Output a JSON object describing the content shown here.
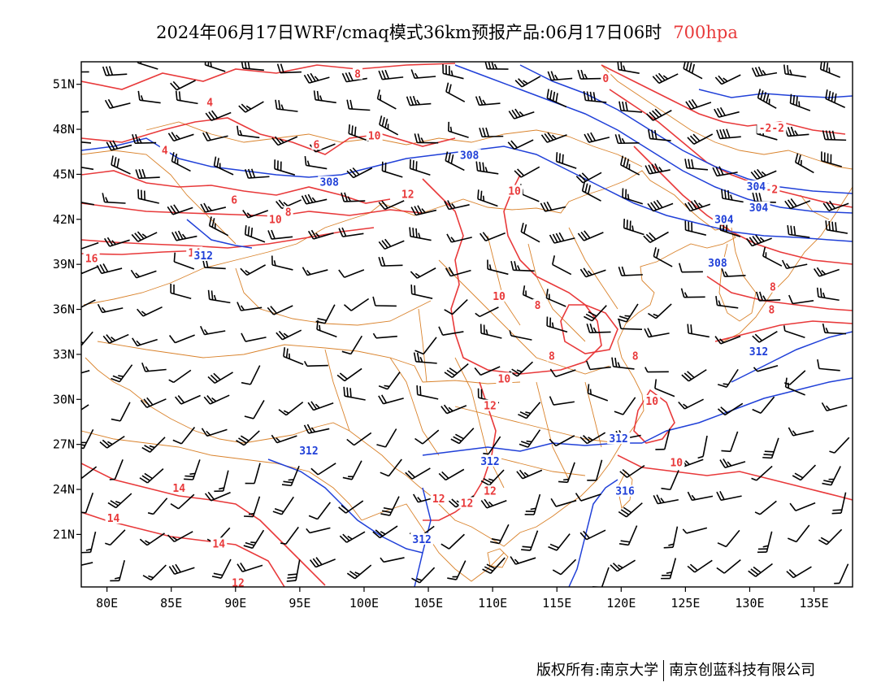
{
  "title": {
    "text": "2024年06月17日WRF/cmaq模式36km预报产品:06月17日06时",
    "level": "700hpa"
  },
  "footer": {
    "left": "版权所有:南京大学",
    "right": "南京创蓝科技有限公司"
  },
  "colors": {
    "temperature": "#e8393a",
    "geopotential": "#2040d8",
    "borders": "#d9822b",
    "wind": "#000000",
    "title_level": "#e8393a"
  },
  "map": {
    "lon_range": [
      78,
      138
    ],
    "lat_range": [
      17.5,
      52.5
    ],
    "lon_ticks": [
      "80E",
      "85E",
      "90E",
      "95E",
      "100E",
      "105E",
      "110E",
      "115E",
      "120E",
      "125E",
      "130E",
      "135E"
    ],
    "lat_ticks": [
      "51N",
      "48N",
      "45N",
      "42N",
      "39N",
      "36N",
      "33N",
      "30N",
      "27N",
      "24N",
      "21N"
    ],
    "temperature_labels": [
      {
        "text": "8",
        "lon": 99.5,
        "lat": 51.6
      },
      {
        "text": "4",
        "lon": 88,
        "lat": 49.7
      },
      {
        "text": "6",
        "lon": 96.3,
        "lat": 46.9
      },
      {
        "text": "4",
        "lon": 84.5,
        "lat": 46.5
      },
      {
        "text": "10",
        "lon": 100.8,
        "lat": 47.5
      },
      {
        "text": "6",
        "lon": 89.9,
        "lat": 43.2
      },
      {
        "text": "8",
        "lon": 94.1,
        "lat": 42.4
      },
      {
        "text": "10",
        "lon": 93.1,
        "lat": 41.9
      },
      {
        "text": "12",
        "lon": 103.4,
        "lat": 43.6
      },
      {
        "text": "10",
        "lon": 111.7,
        "lat": 43.8
      },
      {
        "text": "14",
        "lon": 86.8,
        "lat": 39.7
      },
      {
        "text": "16",
        "lon": 78.8,
        "lat": 39.3
      },
      {
        "text": "10",
        "lon": 110.5,
        "lat": 36.8
      },
      {
        "text": "8",
        "lon": 113.5,
        "lat": 36.2
      },
      {
        "text": "8",
        "lon": 114.6,
        "lat": 32.8
      },
      {
        "text": "8",
        "lon": 121.1,
        "lat": 32.8
      },
      {
        "text": "10",
        "lon": 110.9,
        "lat": 31.3
      },
      {
        "text": "12",
        "lon": 109.8,
        "lat": 29.5
      },
      {
        "text": "10",
        "lon": 122.4,
        "lat": 29.8
      },
      {
        "text": "14",
        "lon": 85.6,
        "lat": 24.0
      },
      {
        "text": "14",
        "lon": 80.5,
        "lat": 22.0
      },
      {
        "text": "14",
        "lon": 88.7,
        "lat": 20.3
      },
      {
        "text": "12",
        "lon": 105.8,
        "lat": 23.3
      },
      {
        "text": "12",
        "lon": 108,
        "lat": 23.0
      },
      {
        "text": "12",
        "lon": 109.8,
        "lat": 23.8
      },
      {
        "text": "10",
        "lon": 124.3,
        "lat": 25.7
      },
      {
        "text": "0",
        "lon": 118.8,
        "lat": 51.3
      },
      {
        "text": "-2-2",
        "lon": 131.7,
        "lat": 48.0
      },
      {
        "text": "-2",
        "lon": 131.7,
        "lat": 43.9
      },
      {
        "text": "8",
        "lon": 131.8,
        "lat": 37.4
      },
      {
        "text": "8",
        "lon": 131.7,
        "lat": 35.9
      },
      {
        "text": "12",
        "lon": 90.2,
        "lat": 17.7
      }
    ],
    "height_labels": [
      {
        "text": "308",
        "lon": 108.2,
        "lat": 46.2
      },
      {
        "text": "308",
        "lon": 97.3,
        "lat": 44.4
      },
      {
        "text": "312",
        "lon": 87.5,
        "lat": 39.5
      },
      {
        "text": "308",
        "lon": 127.5,
        "lat": 39.0
      },
      {
        "text": "304",
        "lon": 128,
        "lat": 41.9
      },
      {
        "text": "304",
        "lon": 130.5,
        "lat": 44.1
      },
      {
        "text": "304",
        "lon": 130.7,
        "lat": 42.7
      },
      {
        "text": "312",
        "lon": 130.7,
        "lat": 33.1
      },
      {
        "text": "312",
        "lon": 119.8,
        "lat": 27.3
      },
      {
        "text": "312",
        "lon": 109.8,
        "lat": 25.8
      },
      {
        "text": "312",
        "lon": 95.7,
        "lat": 26.5
      },
      {
        "text": "316",
        "lon": 120.3,
        "lat": 23.8
      },
      {
        "text": "312",
        "lon": 104.5,
        "lat": 20.6
      }
    ]
  }
}
